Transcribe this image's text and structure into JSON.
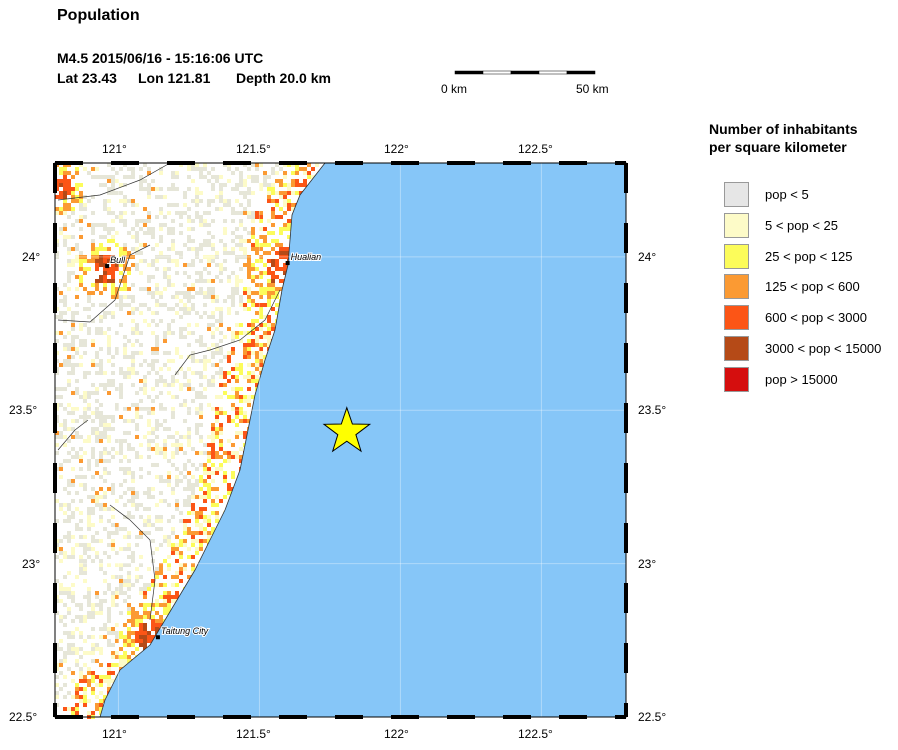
{
  "header": {
    "title": "Population",
    "event_line": "M4.5  2015/06/16 - 15:16:06 UTC",
    "lat": "Lat 23.43",
    "lon": "Lon 121.81",
    "depth": "Depth  20.0 km"
  },
  "scale_bar": {
    "left_label": "0 km",
    "right_label": "50 km"
  },
  "map": {
    "lon_range": [
      120.775,
      122.8
    ],
    "lat_range": [
      22.5,
      24.306
    ],
    "lon_ticks": [
      "121°",
      "121.5°",
      "122°",
      "122.5°"
    ],
    "lat_ticks": [
      "24°",
      "23.5°",
      "23°",
      "22.5°"
    ],
    "epicenter": {
      "lat": 23.43,
      "lon": 121.81,
      "marker": "star",
      "color": "#ffff00"
    },
    "sea_color": "#86c6f8",
    "cities": [
      {
        "name": "Hualian",
        "lat": 23.98,
        "lon": 121.6
      },
      {
        "name": "Bull",
        "lat": 23.97,
        "lon": 120.96
      },
      {
        "name": "Taitung City",
        "lat": 22.76,
        "lon": 121.14
      }
    ]
  },
  "legend": {
    "title_line1": "Number of inhabitants",
    "title_line2": "per square kilometer",
    "items": [
      {
        "label": "pop < 5",
        "color": "#e6e6e6"
      },
      {
        "label": "5 < pop < 25",
        "color": "#fdfbc8"
      },
      {
        "label": "25 < pop < 125",
        "color": "#fcfc5a"
      },
      {
        "label": "125 < pop < 600",
        "color": "#fb9a33"
      },
      {
        "label": "600 < pop < 3000",
        "color": "#fc5516"
      },
      {
        "label": "3000 < pop < 15000",
        "color": "#b54a17"
      },
      {
        "label": "pop > 15000",
        "color": "#d50e0e"
      }
    ]
  }
}
